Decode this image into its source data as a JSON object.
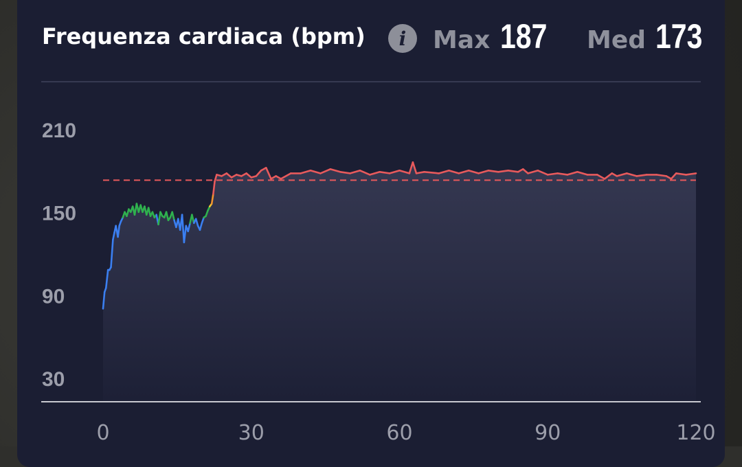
{
  "header": {
    "title": "Frequenza cardiaca (bpm)",
    "info_icon": "info-icon",
    "max_label": "Max",
    "max_value": "187",
    "avg_label": "Med",
    "avg_value": "173"
  },
  "colors": {
    "card_bg": "#1b1e33",
    "zone_blue": "#3b7ff0",
    "zone_green": "#2fb14e",
    "zone_yellow": "#f2c230",
    "zone_orange": "#f0922f",
    "zone_red": "#e85a5c",
    "avg_line": "#e85a5c"
  },
  "chart_data": {
    "type": "line",
    "title": "Frequenza cardiaca (bpm)",
    "xlabel": "",
    "ylabel": "",
    "xlim": [
      0,
      120
    ],
    "ylim": [
      20,
      214
    ],
    "x_ticks": [
      0,
      30,
      60,
      90,
      120
    ],
    "y_ticks": [
      210,
      150,
      90,
      30
    ],
    "average": 173,
    "grid": false,
    "series": [
      {
        "points": [
          [
            0,
            80
          ],
          [
            0.3,
            92
          ],
          [
            0.6,
            95
          ],
          [
            1,
            108
          ],
          [
            1.3,
            108
          ],
          [
            1.6,
            110
          ],
          [
            2,
            130
          ],
          [
            2.3,
            135
          ],
          [
            2.6,
            140
          ],
          [
            3,
            132
          ],
          [
            3.3,
            140
          ],
          [
            3.6,
            143
          ],
          [
            4,
            146
          ],
          [
            4.4,
            150
          ],
          [
            4.8,
            147
          ],
          [
            5.2,
            152
          ],
          [
            5.6,
            150
          ],
          [
            6,
            154
          ],
          [
            6.4,
            148
          ],
          [
            6.8,
            156
          ],
          [
            7.2,
            150
          ],
          [
            7.6,
            155
          ],
          [
            8,
            150
          ],
          [
            8.4,
            154
          ],
          [
            8.8,
            148
          ],
          [
            9.2,
            153
          ],
          [
            9.6,
            147
          ],
          [
            10,
            150
          ],
          [
            10.4,
            146
          ],
          [
            10.8,
            148
          ],
          [
            11.2,
            141
          ],
          [
            11.6,
            150
          ],
          [
            12,
            147
          ],
          [
            12.4,
            146
          ],
          [
            12.8,
            150
          ],
          [
            13.2,
            144
          ],
          [
            13.6,
            146
          ],
          [
            14,
            150
          ],
          [
            14.4,
            144
          ],
          [
            14.8,
            139
          ],
          [
            15.2,
            145
          ],
          [
            15.6,
            137
          ],
          [
            16,
            148
          ],
          [
            16.4,
            128
          ],
          [
            16.8,
            140
          ],
          [
            17.2,
            136
          ],
          [
            17.6,
            142
          ],
          [
            18,
            148
          ],
          [
            18.4,
            142
          ],
          [
            18.8,
            145
          ],
          [
            19.2,
            140
          ],
          [
            19.6,
            137
          ],
          [
            20,
            142
          ],
          [
            20.4,
            146
          ],
          [
            20.8,
            147
          ],
          [
            21.2,
            151
          ],
          [
            21.6,
            154
          ],
          [
            22,
            156
          ],
          [
            22.3,
            163
          ],
          [
            22.6,
            172
          ],
          [
            23,
            177
          ],
          [
            24,
            176
          ],
          [
            25,
            178
          ],
          [
            26,
            175
          ],
          [
            27,
            177
          ],
          [
            28,
            176
          ],
          [
            29,
            178
          ],
          [
            30,
            175
          ],
          [
            31,
            176
          ],
          [
            32,
            180
          ],
          [
            33,
            182
          ],
          [
            34,
            174
          ],
          [
            35,
            176
          ],
          [
            36,
            174
          ],
          [
            38,
            178
          ],
          [
            40,
            178
          ],
          [
            42,
            180
          ],
          [
            44,
            178
          ],
          [
            46,
            181
          ],
          [
            48,
            179
          ],
          [
            50,
            178
          ],
          [
            52,
            180
          ],
          [
            54,
            177
          ],
          [
            56,
            179
          ],
          [
            58,
            178
          ],
          [
            60,
            180
          ],
          [
            62,
            178
          ],
          [
            62.7,
            186
          ],
          [
            63.4,
            178
          ],
          [
            65,
            179
          ],
          [
            68,
            178
          ],
          [
            70,
            180
          ],
          [
            72,
            178
          ],
          [
            74,
            180
          ],
          [
            76,
            178
          ],
          [
            78,
            180
          ],
          [
            80,
            179
          ],
          [
            82,
            180
          ],
          [
            84,
            179
          ],
          [
            85,
            181
          ],
          [
            86,
            178
          ],
          [
            88,
            180
          ],
          [
            90,
            177
          ],
          [
            92,
            178
          ],
          [
            94,
            177
          ],
          [
            96,
            179
          ],
          [
            98,
            177
          ],
          [
            100,
            177
          ],
          [
            101.5,
            174
          ],
          [
            103,
            178
          ],
          [
            104,
            176
          ],
          [
            106,
            178
          ],
          [
            108,
            176
          ],
          [
            110,
            177
          ],
          [
            112,
            177
          ],
          [
            114,
            176
          ],
          [
            115,
            174
          ],
          [
            116,
            178
          ],
          [
            118,
            177
          ],
          [
            120,
            178
          ]
        ]
      }
    ]
  }
}
